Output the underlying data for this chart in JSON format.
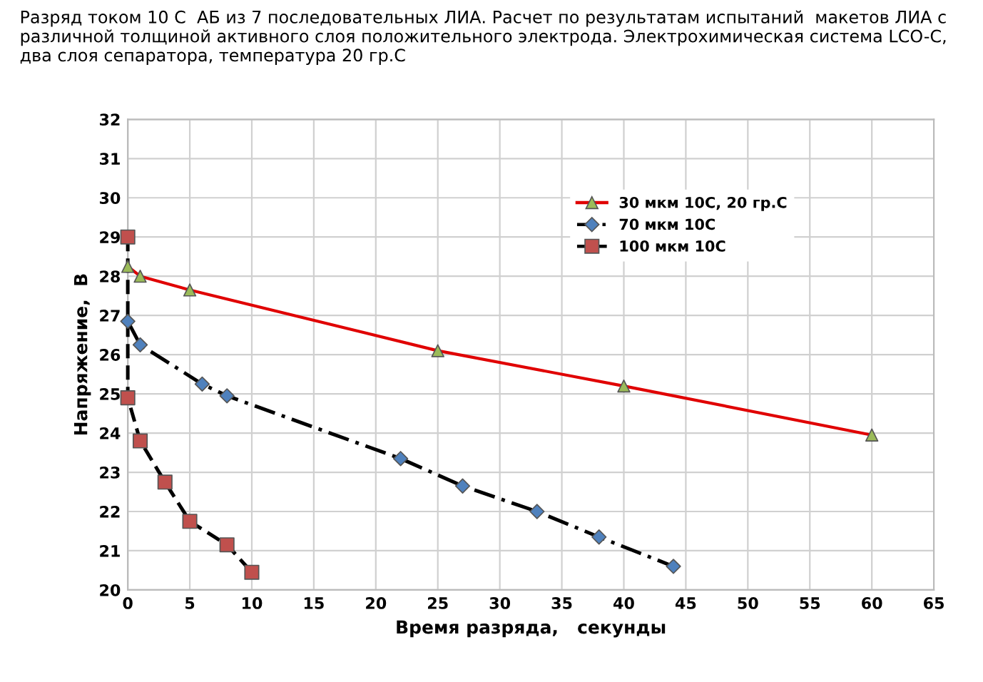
{
  "chart_data": {
    "type": "line",
    "title": "Разряд током 10 С  АБ из 7 последовательных ЛИА. Расчет по результатам испытаний  макетов ЛИА с различной толщиной активного слоя положительного электрода. Электрохимическая система LCO-C, два слоя сепаратора, температура 20 гр.С",
    "xlabel": "Время разряда,   секунды",
    "ylabel": "Напряжение,  В",
    "series": [
      {
        "name": "30 мкм 10С, 20 гр.С",
        "color": "#e00000",
        "marker": "triangle",
        "colors": [
          "#9bbb59",
          "#9bbb59",
          "#9bbb59",
          "#9bbb59",
          "#9bbb59",
          "#9bbb59"
        ],
        "line_style": "solid",
        "x": [
          0,
          1,
          5,
          25,
          40,
          60
        ],
        "values": [
          28.25,
          28.0,
          27.65,
          26.1,
          25.2,
          23.95
        ]
      },
      {
        "name": "70 мкм 10С",
        "color": "#000000",
        "marker": "diamond",
        "colors": [
          "#4f81bd",
          "#4f81bd",
          "#4f81bd",
          "#4f81bd",
          "#4f81bd",
          "#4f81bd",
          "#4f81bd",
          "#4f81bd",
          "#4f81bd"
        ],
        "line_style": "dashdot",
        "x": [
          0,
          1,
          6,
          8,
          22,
          27,
          33,
          38,
          44
        ],
        "values": [
          26.85,
          26.25,
          25.25,
          24.95,
          23.35,
          22.65,
          22.0,
          21.35,
          20.6
        ]
      },
      {
        "name": "100 мкм 10С",
        "color": "#000000",
        "marker": "square",
        "colors": [
          "#c0504d",
          "#c0504d",
          "#c0504d",
          "#c0504d",
          "#c0504d",
          "#c0504d",
          "#c0504d"
        ],
        "line_style": "dashed",
        "x": [
          0,
          0,
          1,
          3,
          5,
          8,
          10
        ],
        "values": [
          29.0,
          24.9,
          23.8,
          22.75,
          21.75,
          21.15,
          20.45
        ]
      }
    ],
    "xlim": [
      0,
      65
    ],
    "xticks": [
      0,
      5,
      10,
      15,
      20,
      25,
      30,
      35,
      40,
      45,
      50,
      55,
      60,
      65
    ],
    "ylim": [
      20,
      32
    ],
    "yticks": [
      20,
      21,
      22,
      23,
      24,
      25,
      26,
      27,
      28,
      29,
      30,
      31,
      32
    ],
    "grid": true,
    "legend": "top right"
  }
}
